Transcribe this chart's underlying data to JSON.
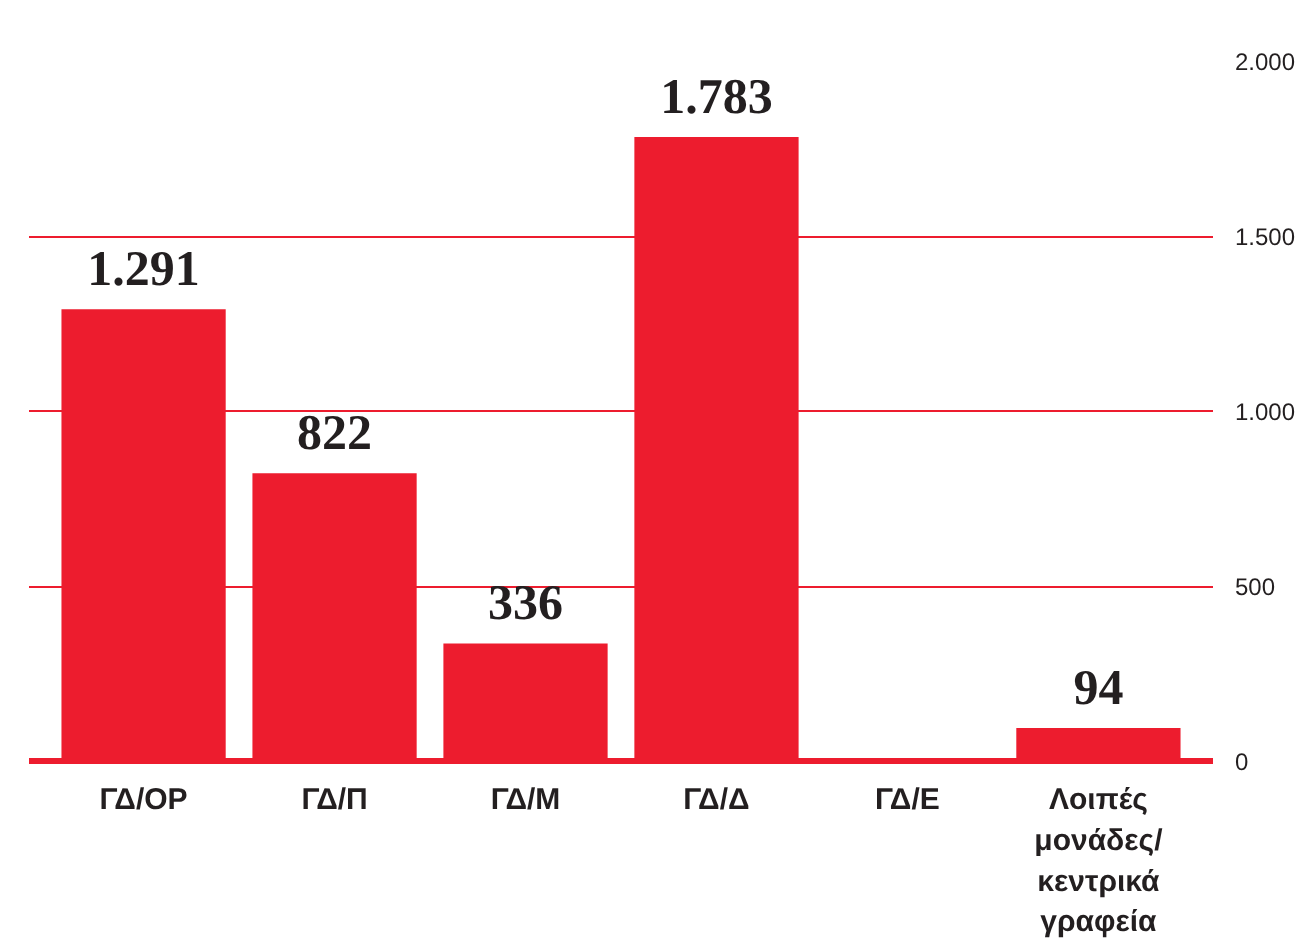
{
  "chart_data": {
    "type": "bar",
    "categories": [
      "ΓΔ/ΟΡ",
      "ΓΔ/Π",
      "ΓΔ/Μ",
      "ΓΔ/Δ",
      "ΓΔ/Ε",
      "Λοιπές\nμονάδες/\nκεντρικά\nγραφεία"
    ],
    "values": [
      1291,
      822,
      336,
      1783,
      null,
      94
    ],
    "value_labels": [
      "1.291",
      "822",
      "336",
      "1.783",
      null,
      "94"
    ],
    "color": "#ed1c2e",
    "ylim": [
      0,
      2000
    ],
    "yticks": [
      0,
      500,
      {
        "value": 1000,
        "label": "1.000"
      },
      {
        "value": 1500,
        "label": "1.500"
      },
      {
        "value": 2000,
        "label": "2.000"
      }
    ],
    "grid": "y"
  }
}
